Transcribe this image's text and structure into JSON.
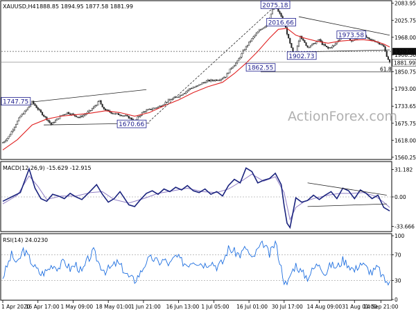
{
  "chart_data": [
    {
      "type": "candlestick",
      "symbol": "XAUUSD,H4",
      "ohlc_text": "1888.85 1894.95 1877.58 1881.99",
      "y_ticks": [
        "2083.95",
        "2025.75",
        "1968.00",
        "1908.36",
        "1850.75",
        "1793.00",
        "1733.65",
        "1675.75",
        "1618.00",
        "1560.25"
      ],
      "ylim": [
        1555,
        2090
      ],
      "last_price": "1881.99",
      "price_box": "1920.06",
      "hline_1920": 1920.06,
      "hline_fib": 1850.2,
      "fib_label": "61.8",
      "price_path": [
        [
          0,
          1610
        ],
        [
          4,
          1630
        ],
        [
          8,
          1665
        ],
        [
          12,
          1700
        ],
        [
          16,
          1720
        ],
        [
          20,
          1748
        ],
        [
          23,
          1730
        ],
        [
          26,
          1712
        ],
        [
          30,
          1690
        ],
        [
          33,
          1672
        ],
        [
          36,
          1685
        ],
        [
          40,
          1702
        ],
        [
          44,
          1712
        ],
        [
          48,
          1705
        ],
        [
          52,
          1695
        ],
        [
          56,
          1706
        ],
        [
          60,
          1720
        ],
        [
          64,
          1740
        ],
        [
          66,
          1752
        ],
        [
          68,
          1728
        ],
        [
          72,
          1716
        ],
        [
          76,
          1708
        ],
        [
          80,
          1705
        ],
        [
          84,
          1700
        ],
        [
          88,
          1690
        ],
        [
          90,
          1680
        ],
        [
          92,
          1695
        ],
        [
          96,
          1715
        ],
        [
          100,
          1722
        ],
        [
          104,
          1728
        ],
        [
          108,
          1735
        ],
        [
          112,
          1750
        ],
        [
          116,
          1760
        ],
        [
          120,
          1768
        ],
        [
          124,
          1780
        ],
        [
          128,
          1795
        ],
        [
          132,
          1800
        ],
        [
          136,
          1812
        ],
        [
          140,
          1820
        ],
        [
          144,
          1822
        ],
        [
          148,
          1825
        ],
        [
          152,
          1835
        ],
        [
          156,
          1865
        ],
        [
          160,
          1885
        ],
        [
          164,
          1920
        ],
        [
          168,
          1950
        ],
        [
          172,
          1975
        ],
        [
          176,
          1995
        ],
        [
          180,
          2010
        ],
        [
          182,
          2035
        ],
        [
          184,
          2060
        ],
        [
          186,
          2075
        ],
        [
          188,
          2055
        ],
        [
          190,
          2040
        ],
        [
          191,
          2025
        ],
        [
          193,
          2000
        ],
        [
          195,
          1962
        ],
        [
          197,
          1930
        ],
        [
          199,
          1895
        ],
        [
          201,
          1940
        ],
        [
          203,
          1975
        ],
        [
          205,
          1955
        ],
        [
          208,
          1935
        ],
        [
          212,
          1945
        ],
        [
          216,
          1960
        ],
        [
          218,
          1945
        ],
        [
          222,
          1930
        ],
        [
          226,
          1940
        ],
        [
          230,
          1965
        ],
        [
          234,
          1975
        ],
        [
          238,
          1955
        ],
        [
          242,
          1965
        ],
        [
          246,
          1975
        ],
        [
          250,
          1960
        ],
        [
          254,
          1955
        ],
        [
          258,
          1945
        ],
        [
          260,
          1935
        ],
        [
          262,
          1905
        ],
        [
          264,
          1882
        ]
      ],
      "ma_path": [
        [
          0,
          1585
        ],
        [
          10,
          1620
        ],
        [
          20,
          1670
        ],
        [
          30,
          1690
        ],
        [
          40,
          1700
        ],
        [
          50,
          1705
        ],
        [
          60,
          1710
        ],
        [
          70,
          1718
        ],
        [
          80,
          1712
        ],
        [
          90,
          1700
        ],
        [
          100,
          1712
        ],
        [
          110,
          1735
        ],
        [
          120,
          1755
        ],
        [
          130,
          1780
        ],
        [
          140,
          1800
        ],
        [
          150,
          1815
        ],
        [
          158,
          1845
        ],
        [
          166,
          1880
        ],
        [
          174,
          1920
        ],
        [
          182,
          1965
        ],
        [
          188,
          1995
        ],
        [
          194,
          1998
        ],
        [
          200,
          1975
        ],
        [
          206,
          1965
        ],
        [
          214,
          1955
        ],
        [
          222,
          1948
        ],
        [
          230,
          1955
        ],
        [
          238,
          1958
        ],
        [
          246,
          1960
        ],
        [
          254,
          1955
        ],
        [
          260,
          1945
        ],
        [
          264,
          1935
        ]
      ],
      "annotations": [
        {
          "label": "2075.18",
          "x": 186,
          "y": 2075
        },
        {
          "label": "2016.66",
          "x": 190,
          "y": 2016
        },
        {
          "label": "1973.58",
          "x": 228,
          "y": 1973
        },
        {
          "label": "1902.73",
          "x": 204,
          "y": 1902
        },
        {
          "label": "1862.55",
          "x": 176,
          "y": 1862
        },
        {
          "label": "1747.75",
          "x": 18,
          "y": 1747
        },
        {
          "label": "1670.66",
          "x": 88,
          "y": 1670
        }
      ],
      "trendlines": [
        {
          "from": [
            20,
            1748
          ],
          "to": [
            98,
            1790
          ]
        },
        {
          "from": [
            28,
            1670
          ],
          "to": [
            100,
            1676
          ]
        },
        {
          "from": [
            100,
            1682
          ],
          "to": [
            186,
            2075
          ]
        },
        {
          "from": [
            202,
            2038
          ],
          "to": [
            264,
            1975
          ]
        },
        {
          "from": [
            202,
            1918
          ],
          "to": [
            264,
            1925
          ]
        }
      ]
    },
    {
      "type": "line",
      "label": "MACD(12,26,9) -15.629 -12.915",
      "y_ticks": [
        "31.182",
        "0.00",
        "-33.666"
      ],
      "ylim": [
        -38,
        38
      ],
      "macd": [
        [
          0,
          -5
        ],
        [
          6,
          0
        ],
        [
          12,
          5
        ],
        [
          18,
          32
        ],
        [
          22,
          10
        ],
        [
          26,
          -2
        ],
        [
          30,
          -5
        ],
        [
          34,
          3
        ],
        [
          38,
          1
        ],
        [
          42,
          -2
        ],
        [
          46,
          4
        ],
        [
          50,
          0
        ],
        [
          54,
          -3
        ],
        [
          60,
          7
        ],
        [
          64,
          14
        ],
        [
          68,
          3
        ],
        [
          72,
          -6
        ],
        [
          76,
          -2
        ],
        [
          80,
          6
        ],
        [
          86,
          -9
        ],
        [
          90,
          -11
        ],
        [
          94,
          -3
        ],
        [
          98,
          4
        ],
        [
          102,
          7
        ],
        [
          106,
          3
        ],
        [
          110,
          9
        ],
        [
          114,
          6
        ],
        [
          118,
          11
        ],
        [
          122,
          8
        ],
        [
          126,
          13
        ],
        [
          130,
          7
        ],
        [
          134,
          5
        ],
        [
          138,
          9
        ],
        [
          142,
          3
        ],
        [
          146,
          6
        ],
        [
          150,
          1
        ],
        [
          154,
          13
        ],
        [
          158,
          20
        ],
        [
          162,
          16
        ],
        [
          166,
          33
        ],
        [
          170,
          29
        ],
        [
          174,
          16
        ],
        [
          178,
          19
        ],
        [
          182,
          21
        ],
        [
          186,
          27
        ],
        [
          190,
          14
        ],
        [
          192,
          -10
        ],
        [
          194,
          -30
        ],
        [
          196,
          -35
        ],
        [
          198,
          -18
        ],
        [
          200,
          -1
        ],
        [
          204,
          -6
        ],
        [
          208,
          -4
        ],
        [
          212,
          2
        ],
        [
          216,
          -3
        ],
        [
          220,
          2
        ],
        [
          224,
          6
        ],
        [
          228,
          -2
        ],
        [
          232,
          10
        ],
        [
          236,
          7
        ],
        [
          240,
          -2
        ],
        [
          244,
          8
        ],
        [
          248,
          4
        ],
        [
          252,
          -2
        ],
        [
          256,
          2
        ],
        [
          260,
          -12
        ],
        [
          264,
          -16
        ]
      ],
      "signal": [
        [
          0,
          -8
        ],
        [
          10,
          2
        ],
        [
          18,
          24
        ],
        [
          24,
          12
        ],
        [
          30,
          -3
        ],
        [
          40,
          1
        ],
        [
          50,
          1
        ],
        [
          60,
          5
        ],
        [
          68,
          6
        ],
        [
          76,
          -3
        ],
        [
          86,
          -7
        ],
        [
          96,
          -2
        ],
        [
          106,
          4
        ],
        [
          116,
          7
        ],
        [
          126,
          10
        ],
        [
          136,
          6
        ],
        [
          146,
          5
        ],
        [
          154,
          9
        ],
        [
          162,
          17
        ],
        [
          170,
          26
        ],
        [
          178,
          18
        ],
        [
          186,
          23
        ],
        [
          192,
          5
        ],
        [
          196,
          -26
        ],
        [
          200,
          -12
        ],
        [
          206,
          -5
        ],
        [
          214,
          -1
        ],
        [
          222,
          2
        ],
        [
          230,
          4
        ],
        [
          238,
          4
        ],
        [
          246,
          5
        ],
        [
          254,
          1
        ],
        [
          260,
          -6
        ],
        [
          264,
          -12
        ]
      ],
      "trendlines": [
        {
          "from": [
            208,
            16
          ],
          "to": [
            262,
            2
          ]
        },
        {
          "from": [
            208,
            -11
          ],
          "to": [
            262,
            -8
          ]
        }
      ]
    },
    {
      "type": "line",
      "label": "RSI(14) 24.0230",
      "y_ticks": [
        "100",
        "70",
        "30",
        "0"
      ],
      "ylim": [
        0,
        100
      ],
      "rsi": [
        [
          0,
          35
        ],
        [
          6,
          70
        ],
        [
          10,
          55
        ],
        [
          14,
          78
        ],
        [
          18,
          65
        ],
        [
          22,
          50
        ],
        [
          26,
          40
        ],
        [
          30,
          45
        ],
        [
          34,
          55
        ],
        [
          38,
          50
        ],
        [
          42,
          60
        ],
        [
          46,
          48
        ],
        [
          50,
          55
        ],
        [
          54,
          42
        ],
        [
          58,
          62
        ],
        [
          62,
          75
        ],
        [
          66,
          55
        ],
        [
          70,
          45
        ],
        [
          74,
          50
        ],
        [
          78,
          58
        ],
        [
          82,
          48
        ],
        [
          86,
          35
        ],
        [
          90,
          30
        ],
        [
          94,
          42
        ],
        [
          98,
          60
        ],
        [
          102,
          65
        ],
        [
          106,
          58
        ],
        [
          110,
          62
        ],
        [
          114,
          55
        ],
        [
          118,
          68
        ],
        [
          122,
          60
        ],
        [
          126,
          55
        ],
        [
          130,
          62
        ],
        [
          134,
          58
        ],
        [
          138,
          55
        ],
        [
          142,
          60
        ],
        [
          146,
          52
        ],
        [
          150,
          58
        ],
        [
          154,
          80
        ],
        [
          158,
          75
        ],
        [
          162,
          70
        ],
        [
          166,
          82
        ],
        [
          170,
          62
        ],
        [
          174,
          78
        ],
        [
          178,
          88
        ],
        [
          182,
          70
        ],
        [
          186,
          90
        ],
        [
          190,
          50
        ],
        [
          192,
          30
        ],
        [
          194,
          20
        ],
        [
          196,
          38
        ],
        [
          200,
          55
        ],
        [
          204,
          42
        ],
        [
          208,
          35
        ],
        [
          212,
          48
        ],
        [
          216,
          58
        ],
        [
          220,
          40
        ],
        [
          224,
          55
        ],
        [
          228,
          50
        ],
        [
          232,
          62
        ],
        [
          236,
          55
        ],
        [
          240,
          45
        ],
        [
          244,
          58
        ],
        [
          248,
          50
        ],
        [
          252,
          42
        ],
        [
          256,
          50
        ],
        [
          260,
          32
        ],
        [
          264,
          24
        ]
      ]
    }
  ],
  "x_labels": [
    {
      "i": 0,
      "t": "1 Apr 2020"
    },
    {
      "i": 24,
      "t": "16 Apr 17:00"
    },
    {
      "i": 48,
      "t": "1 May 09:00"
    },
    {
      "i": 72,
      "t": "18 May 01:00"
    },
    {
      "i": 96,
      "t": "1 Jun 21:00"
    },
    {
      "i": 120,
      "t": "16 Jun 13:00"
    },
    {
      "i": 144,
      "t": "1 Jul 05:00"
    },
    {
      "i": 168,
      "t": "16 Jul 01:00"
    },
    {
      "i": 192,
      "t": "30 Jul 17:00"
    },
    {
      "i": 216,
      "t": "14 Aug 09:00"
    },
    {
      "i": 240,
      "t": "31 Aug 01:00"
    },
    {
      "i": 258,
      "t": "14 Sep 21:00"
    }
  ],
  "watermark": "ActionForex.com",
  "colors": {
    "candle": "#2a2a2a",
    "ma": "#e02020",
    "macd": "#1a237e",
    "signal": "#8e7cc3",
    "rsi": "#1e6fe0",
    "annotation": "#1a1a8c",
    "price_box_bg": "#111111"
  }
}
